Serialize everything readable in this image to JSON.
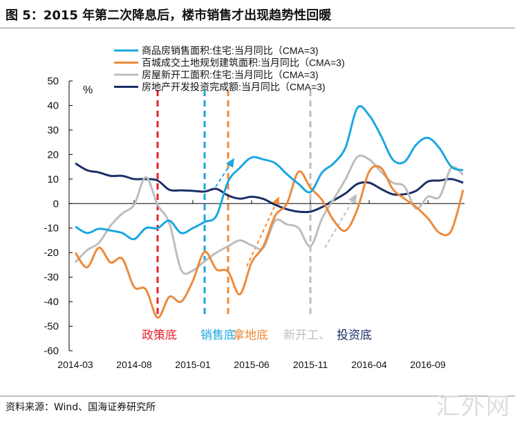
{
  "title": "图 5：2015 年第二次降息后，楼市销售才出现趋势性回暖",
  "source": "资料来源：Wind、国海证券研究所",
  "watermark": "汇外网",
  "chart_data": {
    "type": "line",
    "ylabel": "%",
    "ylim": [
      -60,
      50
    ],
    "yticks": [
      50,
      40,
      30,
      20,
      10,
      0,
      -10,
      -20,
      -30,
      -40,
      -50,
      -60
    ],
    "xticks": [
      "2014-03",
      "2014-08",
      "2015-01",
      "2015-06",
      "2015-11",
      "2016-04",
      "2016-09"
    ],
    "x_start": "2014-03",
    "x_end": "2016-12",
    "grid": false,
    "legend_position": "top",
    "series": [
      {
        "name": "商品房销售面积:住宅:当月同比（CMA=3)",
        "color": "#1aa7e0",
        "values": [
          -9.4,
          -12,
          -10.3,
          -11,
          -12,
          -14.5,
          -10,
          -10,
          -7,
          -12,
          -10,
          -7.5,
          -5,
          9,
          14.6,
          18.8,
          18,
          16.5,
          12,
          8,
          4.7,
          12.7,
          16.5,
          23,
          39,
          36,
          27.7,
          18,
          17,
          24,
          26.8,
          22.5,
          15,
          13.6
        ]
      },
      {
        "name": "百城成交土地规划建筑面积:当月同比（CMA=3)",
        "color": "#ec8a3a",
        "values": [
          -20,
          -26,
          -18,
          -24,
          -22.5,
          -34,
          -35,
          -46.5,
          -38,
          -40,
          -31.5,
          -19.7,
          -26.8,
          -27.7,
          -37,
          -24,
          -17.4,
          -5,
          0,
          13,
          6.5,
          1.4,
          -7,
          -11,
          -2.3,
          13,
          14.6,
          6,
          2,
          -1.4,
          -6,
          -12,
          -11,
          5.6
        ]
      },
      {
        "name": "房屋新开工面积:住宅:当月同比（CMA=3)",
        "color": "#bdbdbd",
        "values": [
          -24,
          -19,
          -16,
          -9,
          -4,
          -0.5,
          10.8,
          -0.5,
          -8,
          -27,
          -27.3,
          -23.5,
          -20,
          -17.4,
          -15,
          -17,
          -18,
          -7,
          -8.5,
          -10,
          -17.4,
          -6,
          2,
          10,
          19,
          18,
          13,
          8.5,
          7,
          -2,
          2.8,
          2.8,
          14.6,
          11.7
        ]
      },
      {
        "name": "房地产开发投资完成额:当月同比（CMA=3)",
        "color": "#1b2f66",
        "values": [
          16.4,
          13.6,
          12.7,
          11.3,
          11.3,
          10,
          10,
          9.4,
          5.6,
          5.4,
          5.2,
          4.9,
          6,
          3.3,
          2,
          2.8,
          1.9,
          -0.5,
          -2.3,
          -3.3,
          -3.3,
          -1.4,
          1.4,
          4.2,
          8,
          8.5,
          6,
          3.8,
          3.8,
          5.2,
          9,
          9.4,
          10,
          8.5
        ]
      }
    ],
    "annotations": [
      {
        "label": "政策底",
        "date": "2014-10",
        "color": "#e8202a"
      },
      {
        "label": "销售底",
        "date": "2015-02",
        "color": "#1aa7e0"
      },
      {
        "label": "拿地底",
        "date": "2015-04",
        "color": "#ec8a3a"
      },
      {
        "label": "新开工、",
        "date": "2015-11",
        "color": "#bdbdbd"
      },
      {
        "label": "投资底",
        "date": "",
        "color": "#1b2f66"
      }
    ]
  }
}
